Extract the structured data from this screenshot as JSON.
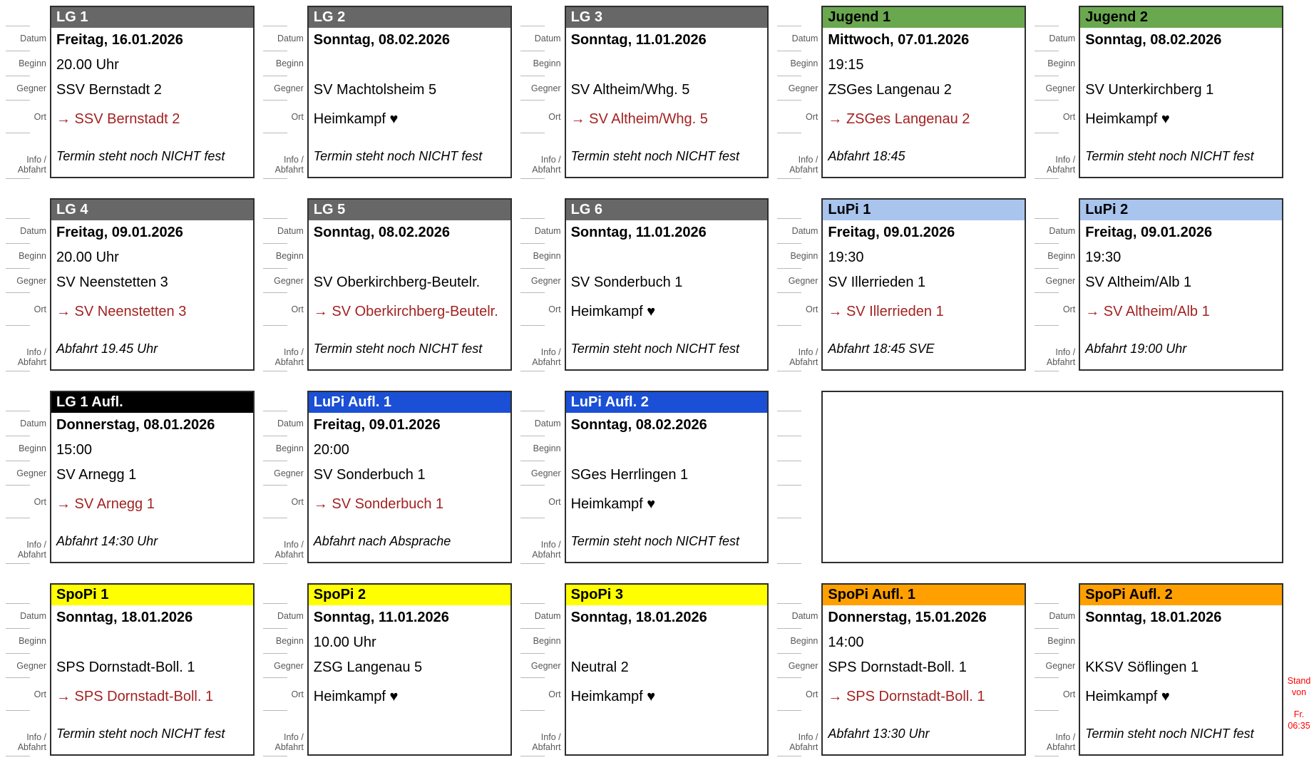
{
  "field_labels": {
    "datum": "Datum",
    "beginn": "Beginn",
    "gegner": "Gegner",
    "ort": "Ort",
    "info_line1": "Info /",
    "info_line2": "Abfahrt"
  },
  "stand_note": {
    "text": "Stand von\n\nFr.\n06:35",
    "color": "#ff0000"
  },
  "colors": {
    "card_border": "#2e2e2e",
    "location_link_red": "#a32222",
    "label_gray": "#585858"
  },
  "header_styles": {
    "lg": {
      "bg": "#676767",
      "fg": "#ffffff"
    },
    "jugend": {
      "bg": "#6aa84f",
      "fg": "#000000"
    },
    "lupi": {
      "bg": "#a9c5ee",
      "fg": "#000000"
    },
    "lg-aufl": {
      "bg": "#000000",
      "fg": "#ffffff"
    },
    "lupi-aufl": {
      "bg": "#1a4fd6",
      "fg": "#ffffff"
    },
    "spopi": {
      "bg": "#ffff00",
      "fg": "#000000"
    },
    "spopi-aufl": {
      "bg": "#ffa000",
      "fg": "#000000"
    }
  },
  "rows": [
    [
      {
        "type": "lg",
        "title": "LG 1",
        "datum": "Freitag, 16.01.2026",
        "beginn": "20.00 Uhr",
        "gegner": "SSV Bernstadt 2",
        "ort": "→ SSV Bernstadt 2",
        "info": "Termin steht noch NICHT fest"
      },
      {
        "type": "lg",
        "title": "LG 2",
        "datum": "Sonntag, 08.02.2026",
        "beginn": "",
        "gegner": "SV Machtolsheim 5",
        "ort": "Heimkampf ♥",
        "info": "Termin steht noch NICHT fest"
      },
      {
        "type": "lg",
        "title": "LG 3",
        "datum": "Sonntag, 11.01.2026",
        "beginn": "",
        "gegner": "SV Altheim/Whg. 5",
        "ort": "→ SV Altheim/Whg. 5",
        "info": "Termin steht noch NICHT fest"
      },
      {
        "type": "jugend",
        "title": "Jugend 1",
        "datum": "Mittwoch, 07.01.2026",
        "beginn": "19:15",
        "gegner": "ZSGes Langenau 2",
        "ort": "→ ZSGes Langenau 2",
        "info": "Abfahrt 18:45"
      },
      {
        "type": "jugend",
        "title": "Jugend 2",
        "datum": "Sonntag, 08.02.2026",
        "beginn": "",
        "gegner": "SV Unterkirchberg 1",
        "ort": "Heimkampf ♥",
        "info": "Termin steht noch NICHT fest"
      }
    ],
    [
      {
        "type": "lg",
        "title": "LG 4",
        "datum": "Freitag, 09.01.2026",
        "beginn": "20.00 Uhr",
        "gegner": "SV Neenstetten 3",
        "ort": "→ SV Neenstetten 3",
        "info": "Abfahrt 19.45 Uhr"
      },
      {
        "type": "lg",
        "title": "LG 5",
        "datum": "Sonntag, 08.02.2026",
        "beginn": "",
        "gegner": "SV Oberkirchberg-Beutelr.",
        "ort": "→ SV Oberkirchberg-Beutelr.",
        "info": "Termin steht noch NICHT fest"
      },
      {
        "type": "lg",
        "title": "LG 6",
        "datum": "Sonntag, 11.01.2026",
        "beginn": "",
        "gegner": "SV Sonderbuch 1",
        "ort": "Heimkampf ♥",
        "info": "Termin steht noch NICHT fest"
      },
      {
        "type": "lupi",
        "title": "LuPi 1",
        "datum": "Freitag, 09.01.2026",
        "beginn": "19:30",
        "gegner": "SV Illerrieden 1",
        "ort": "→ SV Illerrieden 1",
        "info": "Abfahrt 18:45 SVE"
      },
      {
        "type": "lupi",
        "title": "LuPi 2",
        "datum": "Freitag, 09.01.2026",
        "beginn": "19:30",
        "gegner": "SV Altheim/Alb 1",
        "ort": "→ SV Altheim/Alb 1",
        "info": "Abfahrt 19:00 Uhr"
      }
    ],
    [
      {
        "type": "lg-aufl",
        "title": "LG 1 Aufl.",
        "datum": "Donnerstag, 08.01.2026",
        "beginn": "15:00",
        "gegner": "SV Arnegg 1",
        "ort": "→ SV Arnegg 1",
        "info": "Abfahrt 14:30 Uhr"
      },
      {
        "type": "lupi-aufl",
        "title": "LuPi Aufl. 1",
        "datum": "Freitag, 09.01.2026",
        "beginn": "20:00",
        "gegner": "SV Sonderbuch 1",
        "ort": "→ SV Sonderbuch 1",
        "info": "Abfahrt nach Absprache"
      },
      {
        "type": "lupi-aufl",
        "title": "LuPi Aufl. 2",
        "datum": "Sonntag, 08.02.2026",
        "beginn": "",
        "gegner": "SGes Herrlingen 1",
        "ort": "Heimkampf ♥",
        "info": "Termin steht noch NICHT fest"
      },
      {
        "empty": true,
        "span": 2
      }
    ],
    [
      {
        "type": "spopi",
        "title": "SpoPi 1",
        "datum": "Sonntag, 18.01.2026",
        "beginn": "",
        "gegner": "SPS Dornstadt-Boll. 1",
        "ort": "→ SPS Dornstadt-Boll. 1",
        "info": "Termin steht noch NICHT fest"
      },
      {
        "type": "spopi",
        "title": "SpoPi 2",
        "datum": "Sonntag, 11.01.2026",
        "beginn": "10.00 Uhr",
        "gegner": "ZSG Langenau 5",
        "ort": "Heimkampf ♥",
        "info": ""
      },
      {
        "type": "spopi",
        "title": "SpoPi 3",
        "datum": "Sonntag, 18.01.2026",
        "beginn": "",
        "gegner": "Neutral 2",
        "ort": "Heimkampf ♥",
        "info": ""
      },
      {
        "type": "spopi-aufl",
        "title": "SpoPi Aufl. 1",
        "datum": "Donnerstag, 15.01.2026",
        "beginn": "14:00",
        "gegner": "SPS Dornstadt-Boll. 1",
        "ort": "→ SPS Dornstadt-Boll. 1",
        "info": "Abfahrt 13:30 Uhr"
      },
      {
        "type": "spopi-aufl",
        "title": "SpoPi Aufl. 2",
        "datum": "Sonntag, 18.01.2026",
        "beginn": "",
        "gegner": "KKSV Söflingen 1",
        "ort": "Heimkampf ♥",
        "info": "Termin steht noch NICHT fest"
      }
    ]
  ]
}
